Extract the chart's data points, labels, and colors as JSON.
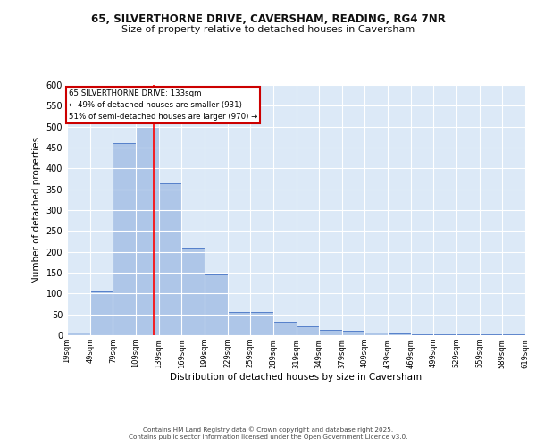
{
  "title_line1": "65, SILVERTHORNE DRIVE, CAVERSHAM, READING, RG4 7NR",
  "title_line2": "Size of property relative to detached houses in Caversham",
  "xlabel": "Distribution of detached houses by size in Caversham",
  "ylabel": "Number of detached properties",
  "bar_values": [
    7,
    105,
    460,
    500,
    365,
    210,
    145,
    55,
    55,
    32,
    22,
    12,
    10,
    7,
    4,
    2,
    2,
    2,
    2,
    2
  ],
  "bin_starts": [
    19,
    49,
    79,
    109,
    139,
    169,
    199,
    229,
    259,
    289,
    319,
    349,
    379,
    409,
    439,
    469,
    499,
    529,
    559,
    589
  ],
  "bin_width": 30,
  "tick_labels": [
    "19sqm",
    "49sqm",
    "79sqm",
    "109sqm",
    "139sqm",
    "169sqm",
    "199sqm",
    "229sqm",
    "259sqm",
    "289sqm",
    "319sqm",
    "349sqm",
    "379sqm",
    "409sqm",
    "439sqm",
    "469sqm",
    "499sqm",
    "529sqm",
    "559sqm",
    "589sqm",
    "619sqm"
  ],
  "bar_color": "#aec6e8",
  "bar_edge_color": "#4472c4",
  "background_color": "#dce9f7",
  "grid_color": "#ffffff",
  "red_line_x": 133,
  "annotation_text_line1": "65 SILVERTHORNE DRIVE: 133sqm",
  "annotation_text_line2": "← 49% of detached houses are smaller (931)",
  "annotation_text_line3": "51% of semi-detached houses are larger (970) →",
  "annotation_box_color": "#ffffff",
  "annotation_border_color": "#cc0000",
  "ylim": [
    0,
    600
  ],
  "yticks": [
    0,
    50,
    100,
    150,
    200,
    250,
    300,
    350,
    400,
    450,
    500,
    550,
    600
  ],
  "footer_line1": "Contains HM Land Registry data © Crown copyright and database right 2025.",
  "footer_line2": "Contains public sector information licensed under the Open Government Licence v3.0."
}
